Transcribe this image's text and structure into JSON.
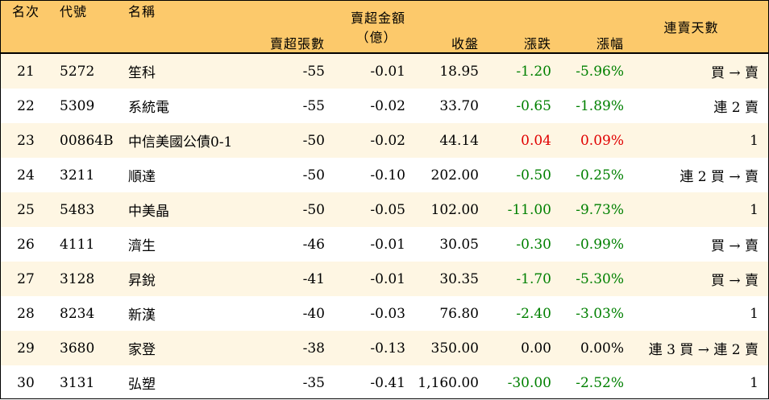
{
  "headers": {
    "rank": "名次",
    "code": "代號",
    "name": "名稱",
    "net_sell_lots": "賣超張數",
    "net_sell_amount_line1": "賣超金額",
    "net_sell_amount_line2": "（億）",
    "close": "收盤",
    "change": "漲跌",
    "change_pct": "漲幅",
    "streak": "連賣天數"
  },
  "colors": {
    "header_bg": "#fcc96b",
    "alt_row_bg": "#fef6e3",
    "down": "#008000",
    "up": "#e00000"
  },
  "rows": [
    {
      "rank": "21",
      "code": "5272",
      "name": "笙科",
      "lots": "-55",
      "amount": "-0.01",
      "close": "18.95",
      "change": "-1.20",
      "pct": "-5.96%",
      "dir": "neg",
      "streak": "買 → 賣"
    },
    {
      "rank": "22",
      "code": "5309",
      "name": "系統電",
      "lots": "-55",
      "amount": "-0.02",
      "close": "33.70",
      "change": "-0.65",
      "pct": "-1.89%",
      "dir": "neg",
      "streak": "連 2 賣"
    },
    {
      "rank": "23",
      "code": "00864B",
      "name": "中信美國公債0-1",
      "lots": "-50",
      "amount": "-0.02",
      "close": "44.14",
      "change": "0.04",
      "pct": "0.09%",
      "dir": "pos",
      "streak": "1"
    },
    {
      "rank": "24",
      "code": "3211",
      "name": "順達",
      "lots": "-50",
      "amount": "-0.10",
      "close": "202.00",
      "change": "-0.50",
      "pct": "-0.25%",
      "dir": "neg",
      "streak": "連 2 買 → 賣"
    },
    {
      "rank": "25",
      "code": "5483",
      "name": "中美晶",
      "lots": "-50",
      "amount": "-0.05",
      "close": "102.00",
      "change": "-11.00",
      "pct": "-9.73%",
      "dir": "neg",
      "streak": "1"
    },
    {
      "rank": "26",
      "code": "4111",
      "name": "濟生",
      "lots": "-46",
      "amount": "-0.01",
      "close": "30.05",
      "change": "-0.30",
      "pct": "-0.99%",
      "dir": "neg",
      "streak": "買 → 賣"
    },
    {
      "rank": "27",
      "code": "3128",
      "name": "昇銳",
      "lots": "-41",
      "amount": "-0.01",
      "close": "30.35",
      "change": "-1.70",
      "pct": "-5.30%",
      "dir": "neg",
      "streak": "買 → 賣"
    },
    {
      "rank": "28",
      "code": "8234",
      "name": "新漢",
      "lots": "-40",
      "amount": "-0.03",
      "close": "76.80",
      "change": "-2.40",
      "pct": "-3.03%",
      "dir": "neg",
      "streak": "1"
    },
    {
      "rank": "29",
      "code": "3680",
      "name": "家登",
      "lots": "-38",
      "amount": "-0.13",
      "close": "350.00",
      "change": "0.00",
      "pct": "0.00%",
      "dir": "flat",
      "streak": "連 3 買 → 連 2 賣"
    },
    {
      "rank": "30",
      "code": "3131",
      "name": "弘塑",
      "lots": "-35",
      "amount": "-0.41",
      "close": "1,160.00",
      "change": "-30.00",
      "pct": "-2.52%",
      "dir": "neg",
      "streak": "1"
    }
  ]
}
